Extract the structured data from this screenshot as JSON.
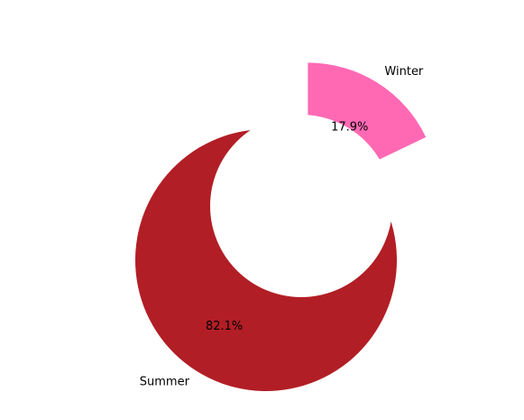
{
  "chart_data": {
    "type": "pie",
    "categories": [
      "Summer",
      "Winter"
    ],
    "values": [
      82.1,
      17.9
    ],
    "percent_labels": [
      "82.1%",
      "17.9%"
    ],
    "colors": [
      "#b21e25",
      "#ff69b4"
    ],
    "exploded": [
      false,
      true
    ],
    "title": "",
    "legend": "none"
  }
}
